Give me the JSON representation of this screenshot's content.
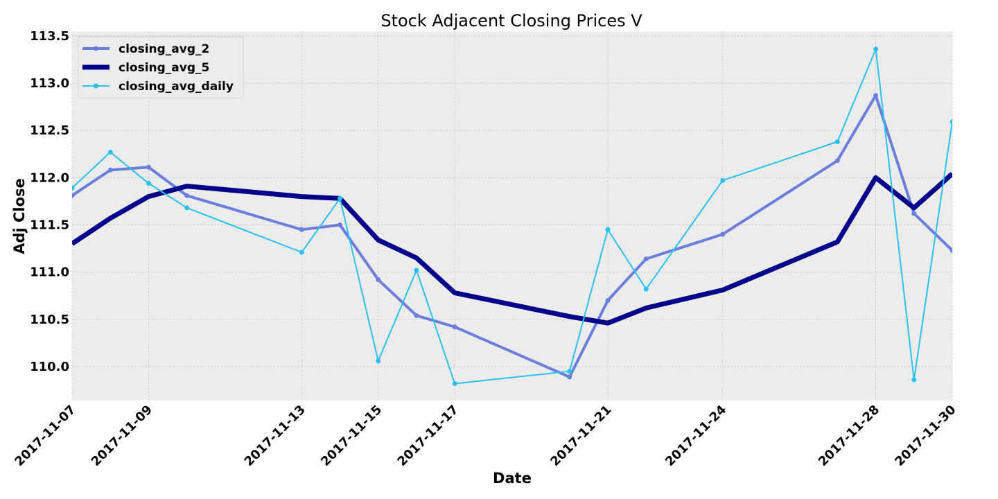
{
  "chart_data": {
    "type": "line",
    "title": "Stock Adjacent Closing Prices V",
    "xlabel": "Date",
    "ylabel": "Adj Close",
    "x_tick_labels": [
      "2017-11-07",
      "2017-11-09",
      "2017-11-13",
      "2017-11-15",
      "2017-11-17",
      "2017-11-21",
      "2017-11-24",
      "2017-11-28",
      "2017-11-30"
    ],
    "x": [
      "2017-11-07",
      "2017-11-08",
      "2017-11-09",
      "2017-11-10",
      "2017-11-13",
      "2017-11-14",
      "2017-11-15",
      "2017-11-16",
      "2017-11-17",
      "2017-11-20",
      "2017-11-21",
      "2017-11-22",
      "2017-11-24",
      "2017-11-27",
      "2017-11-28",
      "2017-11-29",
      "2017-11-30"
    ],
    "y_ticks": [
      110.0,
      110.5,
      111.0,
      111.5,
      112.0,
      112.5,
      113.0,
      113.5
    ],
    "ylim": [
      109.64,
      113.55
    ],
    "grid": true,
    "legend_position": "top-left",
    "series": [
      {
        "name": "closing_avg_2",
        "color": "#6a7fdb",
        "line_width": 4,
        "markers": true,
        "values": [
          111.81,
          112.08,
          112.11,
          111.81,
          111.45,
          111.5,
          110.92,
          110.54,
          110.42,
          109.89,
          110.7,
          111.14,
          111.4,
          112.18,
          112.87,
          111.62,
          111.23
        ]
      },
      {
        "name": "closing_avg_5",
        "color": "#00008b",
        "line_width": 7,
        "markers": false,
        "values": [
          111.3,
          111.57,
          111.8,
          111.91,
          111.8,
          111.78,
          111.34,
          111.15,
          110.78,
          110.53,
          110.46,
          110.62,
          110.81,
          111.32,
          112.0,
          111.68,
          112.04
        ]
      },
      {
        "name": "closing_avg_daily",
        "color": "#29c0f0",
        "line_width": 2,
        "markers": true,
        "values": [
          111.89,
          112.27,
          111.94,
          111.68,
          111.21,
          111.78,
          110.06,
          111.02,
          109.82,
          109.95,
          111.45,
          110.82,
          111.97,
          112.38,
          113.36,
          109.86,
          112.59
        ]
      }
    ]
  }
}
